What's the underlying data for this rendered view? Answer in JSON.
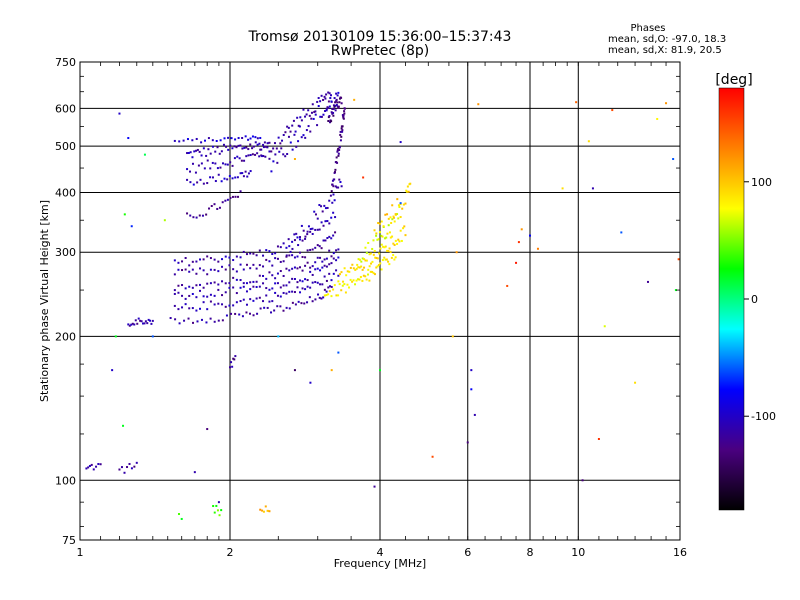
{
  "chart_data": {
    "type": "scatter",
    "title": "Tromsø 20130109 15:36:00–15:37:43",
    "subtitle": "RwPretec (8p)",
    "xlabel": "Frequency [MHz]",
    "ylabel": "Stationary phase Virtual Height [km]",
    "x_scale": "log",
    "y_scale": "log",
    "xlim": [
      1,
      16
    ],
    "ylim": [
      75,
      750
    ],
    "x_ticks": [
      1,
      2,
      4,
      6,
      8,
      10,
      16
    ],
    "x_tick_labels": [
      "1",
      "2",
      "4",
      "6",
      "8",
      "10",
      "16"
    ],
    "y_ticks": [
      75,
      100,
      200,
      300,
      400,
      500,
      600,
      750
    ],
    "y_tick_labels": [
      "75",
      "100",
      "200",
      "300",
      "400",
      "500",
      "600",
      "750"
    ],
    "grid": true,
    "stats": {
      "heading": "Phases",
      "line_o": "mean, sd,O: -97.0, 18.3",
      "line_x": "mean, sd,X:  81.9, 20.5"
    },
    "colorbar": {
      "label": "[deg]",
      "min": -180,
      "max": 180,
      "ticks": [
        100,
        0,
        -100
      ],
      "tick_labels": [
        "100",
        "0",
        "-100"
      ],
      "colormap": [
        "#000000",
        "#4a0080",
        "#0000ff",
        "#00ffff",
        "#00ff00",
        "#ffff00",
        "#ff8000",
        "#ff0000"
      ]
    },
    "traces": [
      {
        "kind": "curve",
        "x": [
          1.64,
          1.75,
          1.9,
          2.05,
          2.2,
          2.35
        ],
        "y": [
          480,
          485,
          490,
          495,
          500,
          505
        ],
        "phase": -110,
        "n": 40,
        "jitter": 0.025
      },
      {
        "kind": "curve",
        "x": [
          1.64,
          1.8,
          1.95,
          2.1,
          2.25,
          2.4
        ],
        "y": [
          448,
          455,
          462,
          470,
          478,
          487
        ],
        "phase": -115,
        "n": 35,
        "jitter": 0.025
      },
      {
        "kind": "curve",
        "x": [
          1.64,
          1.8,
          1.95,
          2.1,
          2.2
        ],
        "y": [
          420,
          425,
          430,
          435,
          440
        ],
        "phase": -105,
        "n": 25,
        "jitter": 0.02
      },
      {
        "kind": "curve",
        "x": [
          1.55,
          1.75,
          1.95,
          2.15,
          2.3
        ],
        "y": [
          512,
          514,
          517,
          520,
          523
        ],
        "phase": -100,
        "n": 25,
        "jitter": 0.01
      },
      {
        "kind": "curve",
        "x": [
          2.3,
          2.5,
          2.7,
          2.9,
          3.1,
          3.2
        ],
        "y": [
          480,
          515,
          555,
          590,
          620,
          625
        ],
        "phase": -115,
        "n": 50,
        "jitter": 0.04
      },
      {
        "kind": "curve",
        "x": [
          2.4,
          2.6,
          2.8,
          3.0,
          3.2,
          3.3
        ],
        "y": [
          460,
          500,
          540,
          580,
          605,
          620
        ],
        "phase": -105,
        "n": 45,
        "jitter": 0.05
      },
      {
        "kind": "curve",
        "x": [
          1.64,
          1.8,
          1.95,
          2.1
        ],
        "y": [
          355,
          365,
          380,
          395
        ],
        "phase": -120,
        "n": 20,
        "jitter": 0.02
      },
      {
        "kind": "curve",
        "x": [
          1.55,
          1.8,
          2.1,
          2.4,
          2.7,
          3.0,
          3.25
        ],
        "y": [
          285,
          290,
          295,
          300,
          315,
          335,
          360
        ],
        "phase": -110,
        "n": 55,
        "jitter": 0.02
      },
      {
        "kind": "curve",
        "x": [
          1.55,
          1.8,
          2.1,
          2.4,
          2.7,
          3.0,
          3.25
        ],
        "y": [
          270,
          273,
          278,
          285,
          292,
          305,
          325
        ],
        "phase": -115,
        "n": 55,
        "jitter": 0.02
      },
      {
        "kind": "curve",
        "x": [
          1.55,
          1.8,
          2.1,
          2.4,
          2.7,
          3.0,
          3.3
        ],
        "y": [
          255,
          258,
          262,
          268,
          276,
          288,
          305
        ],
        "phase": -112,
        "n": 55,
        "jitter": 0.02
      },
      {
        "kind": "curve",
        "x": [
          1.55,
          1.8,
          2.1,
          2.4,
          2.7,
          3.0,
          3.3
        ],
        "y": [
          242,
          245,
          250,
          255,
          262,
          272,
          290
        ],
        "phase": -108,
        "n": 55,
        "jitter": 0.02
      },
      {
        "kind": "curve",
        "x": [
          1.55,
          1.8,
          2.1,
          2.4,
          2.7,
          3.0,
          3.3
        ],
        "y": [
          228,
          232,
          236,
          241,
          248,
          258,
          272
        ],
        "phase": -110,
        "n": 55,
        "jitter": 0.02
      },
      {
        "kind": "curve",
        "x": [
          1.52,
          1.8,
          2.1,
          2.4,
          2.7,
          3.0,
          3.2
        ],
        "y": [
          215,
          218,
          222,
          226,
          232,
          240,
          252
        ],
        "phase": -115,
        "n": 50,
        "jitter": 0.02
      },
      {
        "kind": "curve",
        "x": [
          2.6,
          2.8,
          3.0,
          3.2,
          3.35
        ],
        "y": [
          305,
          330,
          360,
          390,
          420
        ],
        "phase": -108,
        "n": 35,
        "jitter": 0.04
      },
      {
        "kind": "curve",
        "x": [
          3.2,
          3.28,
          3.35,
          3.4
        ],
        "y": [
          400,
          470,
          540,
          610
        ],
        "phase": -125,
        "n": 40,
        "jitter": 0.03
      },
      {
        "kind": "curve",
        "x": [
          3.15,
          3.25,
          3.35
        ],
        "y": [
          560,
          600,
          630
        ],
        "phase": -130,
        "n": 25,
        "jitter": 0.03
      },
      {
        "kind": "curve",
        "x": [
          3.1,
          3.3,
          3.5,
          3.7,
          3.9,
          4.1,
          4.3
        ],
        "y": [
          245,
          250,
          255,
          262,
          272,
          285,
          300
        ],
        "phase": 85,
        "n": 50,
        "jitter": 0.03
      },
      {
        "kind": "curve",
        "x": [
          3.3,
          3.5,
          3.7,
          3.9,
          4.1,
          4.3,
          4.5
        ],
        "y": [
          265,
          272,
          280,
          292,
          305,
          318,
          330
        ],
        "phase": 90,
        "n": 50,
        "jitter": 0.035
      },
      {
        "kind": "curve",
        "x": [
          3.6,
          3.8,
          4.0,
          4.2,
          4.4
        ],
        "y": [
          290,
          305,
          320,
          340,
          365
        ],
        "phase": 75,
        "n": 35,
        "jitter": 0.04
      },
      {
        "kind": "curve",
        "x": [
          3.9,
          4.1,
          4.3,
          4.5,
          4.6
        ],
        "y": [
          330,
          350,
          370,
          390,
          410
        ],
        "phase": 95,
        "n": 25,
        "jitter": 0.04
      },
      {
        "kind": "curve",
        "x": [
          1.25,
          1.3,
          1.35,
          1.4
        ],
        "y": [
          212,
          215,
          216,
          214
        ],
        "phase": -112,
        "n": 18,
        "jitter": 0.015
      },
      {
        "kind": "curve",
        "x": [
          1.03,
          1.06,
          1.1
        ],
        "y": [
          104,
          106,
          109
        ],
        "phase": -110,
        "n": 8,
        "jitter": 0.02
      },
      {
        "kind": "curve",
        "x": [
          1.2,
          1.25,
          1.3
        ],
        "y": [
          104,
          106,
          108
        ],
        "phase": -118,
        "n": 8,
        "jitter": 0.02
      },
      {
        "kind": "curve",
        "x": [
          1.85,
          1.92
        ],
        "y": [
          88,
          86
        ],
        "phase": 40,
        "n": 6,
        "jitter": 0.03
      },
      {
        "kind": "curve",
        "x": [
          2.3,
          2.4
        ],
        "y": [
          86,
          87
        ],
        "phase": 110,
        "n": 6,
        "jitter": 0.02
      },
      {
        "kind": "curve",
        "x": [
          2.0,
          2.05
        ],
        "y": [
          172,
          182
        ],
        "phase": -120,
        "n": 6,
        "jitter": 0.02
      },
      {
        "kind": "scatter",
        "x": [
          1.2,
          1.25,
          1.35,
          1.48,
          1.18,
          1.16,
          1.22,
          1.4,
          1.7,
          1.58,
          1.6,
          1.8,
          1.9,
          2.5,
          2.7,
          2.9,
          3.2,
          3.3,
          3.55,
          3.9,
          4.0,
          4.4,
          5.1,
          5.6,
          5.7,
          6.0,
          6.2,
          6.3,
          7.2,
          7.5,
          7.6,
          7.7,
          8.0,
          8.3,
          9.3,
          9.9,
          10.2,
          10.5,
          10.7,
          11.0,
          11.3,
          11.7,
          12.2,
          13.0,
          13.8,
          14.4,
          15.0,
          15.5,
          15.9,
          15.7,
          6.1,
          6.1,
          4.4,
          3.7,
          1.23,
          1.27,
          2.7
        ],
        "y": [
          585,
          520,
          480,
          350,
          200,
          170,
          130,
          200,
          104,
          85,
          83,
          128,
          90,
          200,
          170,
          160,
          170,
          185,
          625,
          97,
          170,
          510,
          112,
          200,
          300,
          120,
          137,
          612,
          255,
          285,
          315,
          335,
          325,
          305,
          408,
          618,
          100,
          512,
          408,
          122,
          210,
          595,
          330,
          160,
          260,
          570,
          615,
          470,
          290,
          250,
          170,
          155,
          380,
          430,
          360,
          340,
          470
        ],
        "phases": [
          -100,
          -80,
          10,
          60,
          20,
          -100,
          20,
          -60,
          -110,
          40,
          20,
          -130,
          -110,
          -40,
          -140,
          -100,
          110,
          -60,
          110,
          -120,
          20,
          -100,
          150,
          100,
          120,
          -130,
          -110,
          120,
          150,
          170,
          160,
          120,
          -80,
          130,
          90,
          140,
          -130,
          90,
          -110,
          160,
          70,
          150,
          -60,
          90,
          -120,
          80,
          120,
          -60,
          150,
          20,
          -100,
          -80,
          -60,
          160,
          30,
          -70,
          110
        ],
        "n": 1,
        "jitter": 0.0
      }
    ]
  }
}
